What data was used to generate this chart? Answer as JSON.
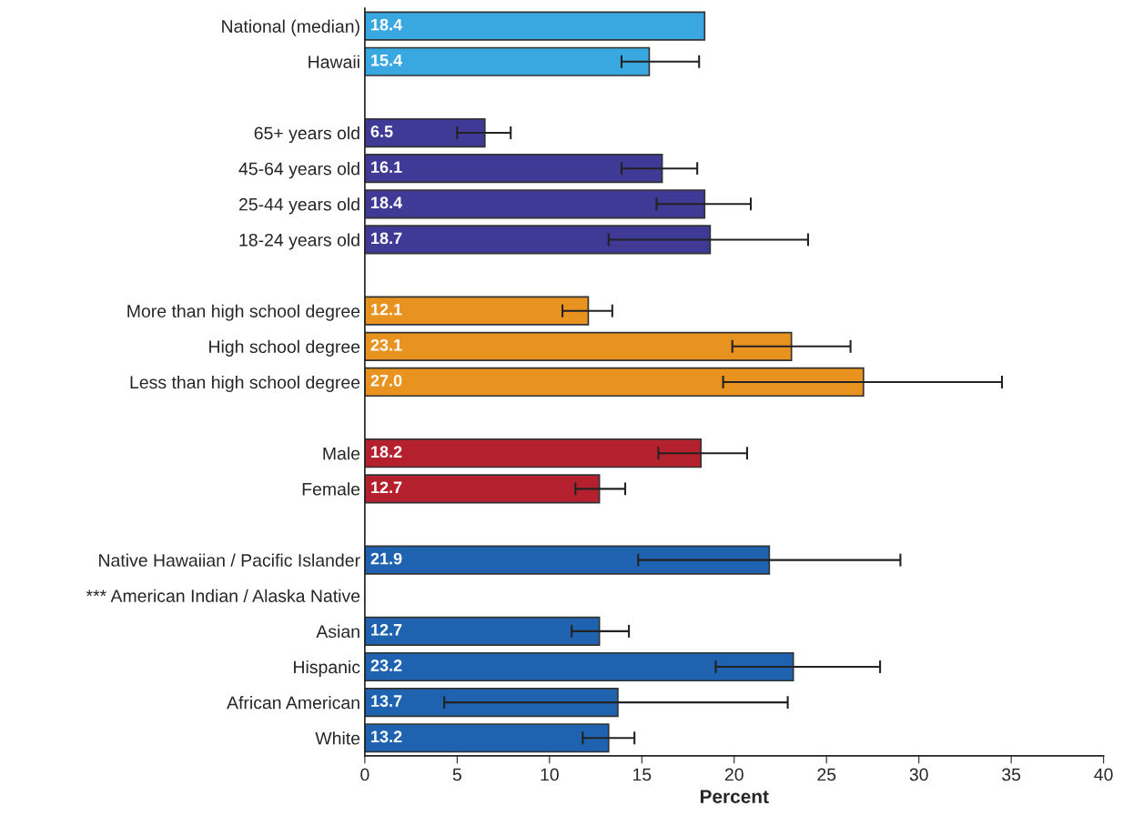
{
  "chart_data": {
    "type": "bar",
    "orientation": "horizontal",
    "xlabel": "Percent",
    "categories": [
      "National (median)",
      "Hawaii",
      null,
      "65+ years old",
      "45-64 years old",
      "25-44 years old",
      "18-24 years old",
      null,
      "More than high school degree",
      "High school degree",
      "Less than high school degree",
      null,
      "Male",
      "Female",
      null,
      "Native Hawaiian / Pacific Islander",
      "*** American Indian / Alaska Native",
      "Asian",
      "Hispanic",
      "African American",
      "White"
    ],
    "values": [
      18.4,
      15.4,
      null,
      6.5,
      16.1,
      18.4,
      18.7,
      null,
      12.1,
      23.1,
      27.0,
      null,
      18.2,
      12.7,
      null,
      21.9,
      null,
      12.7,
      23.2,
      13.7,
      13.2
    ],
    "value_labels": [
      "18.4",
      "15.4",
      null,
      "6.5",
      "16.1",
      "18.4",
      "18.7",
      null,
      "12.1",
      "23.1",
      "27.0",
      null,
      "18.2",
      "12.7",
      null,
      "21.9",
      null,
      "12.7",
      "23.2",
      "13.7",
      "13.2"
    ],
    "errors": [
      null,
      [
        13.9,
        18.1
      ],
      null,
      [
        5.0,
        7.9
      ],
      [
        13.9,
        18.0
      ],
      [
        15.8,
        20.9
      ],
      [
        13.2,
        24.0
      ],
      null,
      [
        10.7,
        13.4
      ],
      [
        19.9,
        26.3
      ],
      [
        19.4,
        34.5
      ],
      null,
      [
        15.9,
        20.7
      ],
      [
        11.4,
        14.1
      ],
      null,
      [
        14.8,
        29.0
      ],
      null,
      [
        11.2,
        14.3
      ],
      [
        19.0,
        27.9
      ],
      [
        4.3,
        22.9
      ],
      [
        11.8,
        14.6
      ]
    ],
    "colors": [
      "#3aa8e0",
      "#3aa8e0",
      null,
      "#3f3a96",
      "#3f3a96",
      "#3f3a96",
      "#3f3a96",
      null,
      "#e8921f",
      "#e8921f",
      "#e8921f",
      null,
      "#b5202e",
      "#b5202e",
      null,
      "#1f63b0",
      null,
      "#1f63b0",
      "#1f63b0",
      "#1f63b0",
      "#1f63b0"
    ],
    "xlim": [
      0,
      40
    ],
    "xticks": [
      0,
      5,
      10,
      15,
      20,
      25,
      30,
      35,
      40
    ],
    "grid": false,
    "legend": false
  }
}
